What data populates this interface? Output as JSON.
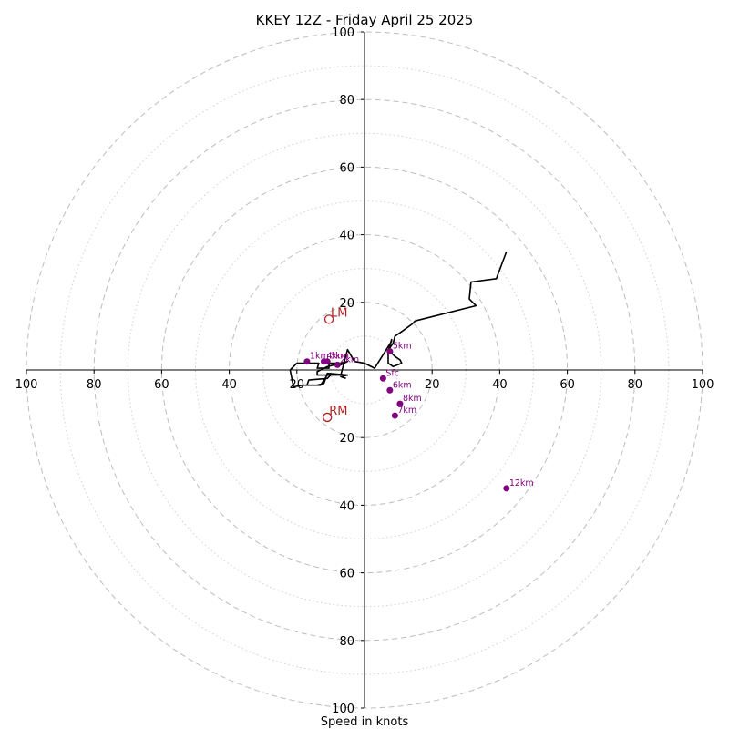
{
  "chart_data": {
    "type": "scatter",
    "title": "KKEY 12Z - Friday April 25 2025",
    "xlabel": "Speed in knots",
    "ylabel": "",
    "xlim": [
      -100,
      100
    ],
    "ylim": [
      -100,
      100
    ],
    "grid": true,
    "ring_major": [
      20,
      40,
      60,
      80,
      100
    ],
    "ring_minor": [
      10,
      30,
      50,
      70,
      90
    ],
    "x_ticks": [
      {
        "value": -100,
        "label": "100"
      },
      {
        "value": -80,
        "label": "80"
      },
      {
        "value": -60,
        "label": "60"
      },
      {
        "value": -40,
        "label": "40"
      },
      {
        "value": -20,
        "label": "20"
      },
      {
        "value": 20,
        "label": "20"
      },
      {
        "value": 40,
        "label": "40"
      },
      {
        "value": 60,
        "label": "60"
      },
      {
        "value": 80,
        "label": "80"
      },
      {
        "value": 100,
        "label": "100"
      }
    ],
    "y_ticks": [
      {
        "value": 100,
        "label": "100"
      },
      {
        "value": 80,
        "label": "80"
      },
      {
        "value": 60,
        "label": "60"
      },
      {
        "value": 40,
        "label": "40"
      },
      {
        "value": 20,
        "label": "20"
      },
      {
        "value": -20,
        "label": "20"
      },
      {
        "value": -40,
        "label": "40"
      },
      {
        "value": -60,
        "label": "60"
      },
      {
        "value": -80,
        "label": "80"
      },
      {
        "value": -100,
        "label": "100"
      }
    ],
    "wind_trace": {
      "color": "#000000",
      "u": [
        -5.5,
        -7,
        -5,
        -11,
        -12,
        -14,
        -17,
        -16.5,
        -11,
        -10,
        -14,
        -14,
        -11,
        -5,
        -8,
        -7,
        -10.5,
        -10.5,
        -14,
        -13.5,
        -20,
        -22,
        -21,
        -18.5,
        -13,
        -11,
        -7,
        -5,
        -3,
        0,
        3,
        8,
        8,
        7,
        7.5,
        9,
        10.5,
        11,
        8.5,
        7,
        7,
        7.5,
        8.5,
        9,
        10.5,
        14,
        15,
        33,
        31,
        31.5,
        39,
        42
      ],
      "v": [
        -2.5,
        -2,
        -1.5,
        -1,
        -4,
        -4.5,
        -4.5,
        -3,
        -2.5,
        -1.5,
        -1.5,
        -0.5,
        1,
        2.5,
        1,
        2,
        2,
        0.5,
        0.5,
        2,
        2,
        0,
        -5,
        -4.5,
        -4.5,
        -1.5,
        -1.5,
        6,
        2.5,
        2,
        0.5,
        8.5,
        9,
        5.5,
        5.5,
        4,
        3,
        2,
        1,
        2,
        5.5,
        6.5,
        8,
        10,
        11,
        13.5,
        14.5,
        19,
        21,
        26,
        27,
        35
      ]
    },
    "height_marker_color": "#800080",
    "height_points": [
      {
        "label": "Sfc",
        "u": 5.5,
        "v": -2.5
      },
      {
        "label": "1km",
        "u": -17,
        "v": 2.5
      },
      {
        "label": "2km",
        "u": -8,
        "v": 1.5
      },
      {
        "label": "3km",
        "u": -11,
        "v": 2.5
      },
      {
        "label": "4km",
        "u": -12,
        "v": 2.5
      },
      {
        "label": "5km",
        "u": 7.5,
        "v": 5.5
      },
      {
        "label": "6km",
        "u": 7.5,
        "v": -6
      },
      {
        "label": "8km",
        "u": 10.5,
        "v": -10
      },
      {
        "label": "7km",
        "u": 9,
        "v": -13.5
      },
      {
        "label": "12km",
        "u": 42,
        "v": -35
      }
    ],
    "storm_motion_color": "#b22222",
    "storm_motion": [
      {
        "label": "LM",
        "u": -10.5,
        "v": 15
      },
      {
        "label": "RM",
        "u": -11,
        "v": -14
      }
    ]
  }
}
